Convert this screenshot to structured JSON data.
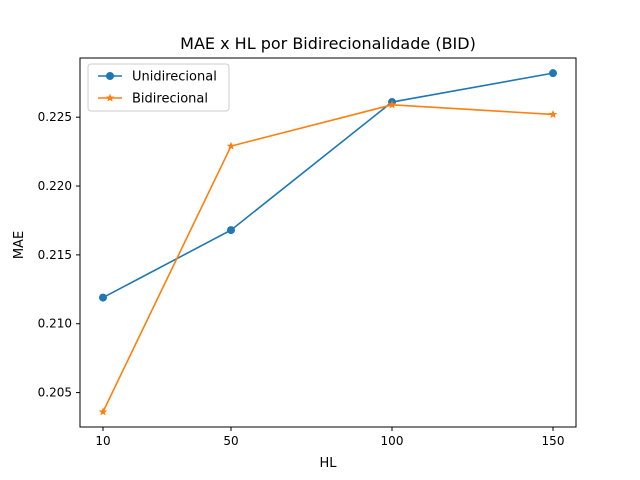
{
  "chart_data": {
    "type": "line",
    "title": "MAE x HL por Bidirecionalidade (BID)",
    "xlabel": "HL",
    "ylabel": "MAE",
    "categories": [
      "10",
      "50",
      "100",
      "150"
    ],
    "yticks": [
      "0.205",
      "0.210",
      "0.215",
      "0.220",
      "0.225"
    ],
    "ytick_values": [
      0.205,
      0.21,
      0.215,
      0.22,
      0.225
    ],
    "ylim": [
      0.2025,
      0.2293
    ],
    "legend_position": "top-left",
    "grid": false,
    "series": [
      {
        "name": "Unidirecional",
        "color": "#1f77b4",
        "marker": "circle",
        "values": [
          0.2119,
          0.2168,
          0.2261,
          0.2282
        ]
      },
      {
        "name": "Bidirecional",
        "color": "#ff7f0e",
        "marker": "star",
        "values": [
          0.2036,
          0.2229,
          0.2259,
          0.2252
        ]
      }
    ]
  }
}
